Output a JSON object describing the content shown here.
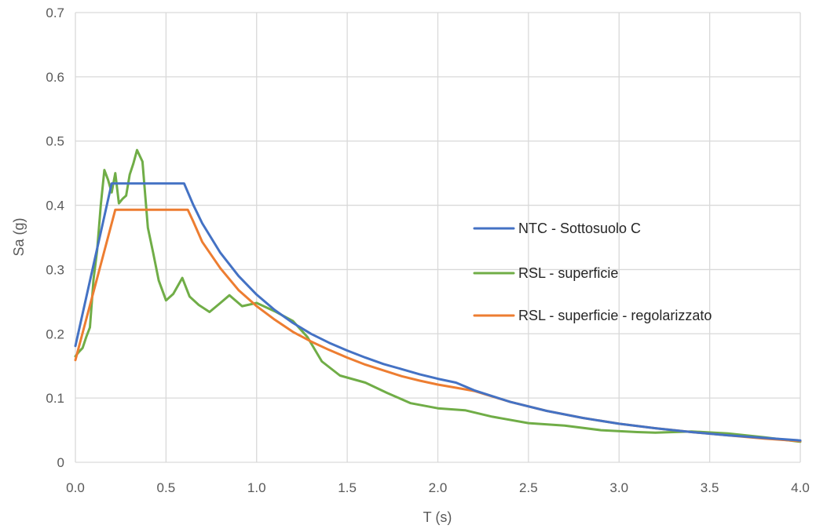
{
  "chart_data": {
    "type": "line",
    "title": "",
    "xlabel": "T (s)",
    "ylabel": "Sa (g)",
    "xlim": [
      0,
      4
    ],
    "ylim": [
      0,
      0.7
    ],
    "grid": true,
    "legend_position": "right",
    "x_ticks": [
      0.0,
      0.5,
      1.0,
      1.5,
      2.0,
      2.5,
      3.0,
      3.5,
      4.0
    ],
    "x_tick_labels": [
      "0.0",
      "0.5",
      "1.0",
      "1.5",
      "2.0",
      "2.5",
      "3.0",
      "3.5",
      "4.0"
    ],
    "y_ticks": [
      0,
      0.1,
      0.2,
      0.3,
      0.4,
      0.5,
      0.6,
      0.7
    ],
    "y_tick_labels": [
      "0",
      "0.1",
      "0.2",
      "0.3",
      "0.4",
      "0.5",
      "0.6",
      "0.7"
    ],
    "series": [
      {
        "name": "NTC - Sottosuolo C",
        "color": "#4472C4",
        "points": [
          [
            0.0,
            0.181
          ],
          [
            0.2,
            0.434
          ],
          [
            0.6,
            0.434
          ],
          [
            0.65,
            0.401
          ],
          [
            0.7,
            0.372
          ],
          [
            0.8,
            0.326
          ],
          [
            0.9,
            0.29
          ],
          [
            1.0,
            0.261
          ],
          [
            1.1,
            0.237
          ],
          [
            1.2,
            0.217
          ],
          [
            1.3,
            0.2
          ],
          [
            1.4,
            0.186
          ],
          [
            1.5,
            0.174
          ],
          [
            1.6,
            0.163
          ],
          [
            1.7,
            0.153
          ],
          [
            1.8,
            0.145
          ],
          [
            1.9,
            0.137
          ],
          [
            2.0,
            0.13
          ],
          [
            2.1,
            0.124
          ],
          [
            2.2,
            0.112
          ],
          [
            2.4,
            0.094
          ],
          [
            2.6,
            0.08
          ],
          [
            2.8,
            0.069
          ],
          [
            3.0,
            0.06
          ],
          [
            3.2,
            0.053
          ],
          [
            3.4,
            0.047
          ],
          [
            3.6,
            0.042
          ],
          [
            3.8,
            0.038
          ],
          [
            4.0,
            0.034
          ]
        ]
      },
      {
        "name": "RSL - superficie",
        "color": "#70AD47",
        "points": [
          [
            0.0,
            0.165
          ],
          [
            0.02,
            0.172
          ],
          [
            0.04,
            0.178
          ],
          [
            0.06,
            0.195
          ],
          [
            0.08,
            0.21
          ],
          [
            0.1,
            0.285
          ],
          [
            0.12,
            0.33
          ],
          [
            0.14,
            0.4
          ],
          [
            0.16,
            0.455
          ],
          [
            0.18,
            0.44
          ],
          [
            0.2,
            0.42
          ],
          [
            0.22,
            0.45
          ],
          [
            0.24,
            0.403
          ],
          [
            0.26,
            0.41
          ],
          [
            0.28,
            0.415
          ],
          [
            0.3,
            0.448
          ],
          [
            0.32,
            0.465
          ],
          [
            0.34,
            0.486
          ],
          [
            0.37,
            0.468
          ],
          [
            0.4,
            0.365
          ],
          [
            0.43,
            0.325
          ],
          [
            0.46,
            0.283
          ],
          [
            0.5,
            0.252
          ],
          [
            0.54,
            0.262
          ],
          [
            0.59,
            0.287
          ],
          [
            0.63,
            0.258
          ],
          [
            0.68,
            0.245
          ],
          [
            0.74,
            0.234
          ],
          [
            0.8,
            0.248
          ],
          [
            0.85,
            0.26
          ],
          [
            0.92,
            0.243
          ],
          [
            1.0,
            0.248
          ],
          [
            1.1,
            0.235
          ],
          [
            1.2,
            0.22
          ],
          [
            1.28,
            0.195
          ],
          [
            1.36,
            0.157
          ],
          [
            1.46,
            0.135
          ],
          [
            1.6,
            0.124
          ],
          [
            1.72,
            0.108
          ],
          [
            1.85,
            0.092
          ],
          [
            2.0,
            0.084
          ],
          [
            2.15,
            0.081
          ],
          [
            2.3,
            0.071
          ],
          [
            2.5,
            0.061
          ],
          [
            2.7,
            0.057
          ],
          [
            2.9,
            0.05
          ],
          [
            3.1,
            0.047
          ],
          [
            3.2,
            0.046
          ],
          [
            3.4,
            0.048
          ],
          [
            3.6,
            0.045
          ],
          [
            3.8,
            0.039
          ],
          [
            4.0,
            0.032
          ]
        ]
      },
      {
        "name": "RSL - superficie - regolarizzato",
        "color": "#ED7D31",
        "points": [
          [
            0.0,
            0.159
          ],
          [
            0.22,
            0.393
          ],
          [
            0.62,
            0.393
          ],
          [
            0.65,
            0.375
          ],
          [
            0.7,
            0.343
          ],
          [
            0.8,
            0.302
          ],
          [
            0.9,
            0.268
          ],
          [
            1.0,
            0.243
          ],
          [
            1.1,
            0.222
          ],
          [
            1.2,
            0.203
          ],
          [
            1.3,
            0.188
          ],
          [
            1.4,
            0.175
          ],
          [
            1.5,
            0.163
          ],
          [
            1.6,
            0.152
          ],
          [
            1.7,
            0.143
          ],
          [
            1.8,
            0.134
          ],
          [
            1.9,
            0.127
          ],
          [
            2.0,
            0.121
          ],
          [
            2.1,
            0.116
          ],
          [
            2.2,
            0.111
          ],
          [
            2.4,
            0.094
          ],
          [
            2.6,
            0.08
          ],
          [
            2.8,
            0.069
          ],
          [
            3.0,
            0.06
          ],
          [
            3.2,
            0.053
          ],
          [
            3.4,
            0.047
          ],
          [
            3.6,
            0.042
          ],
          [
            3.8,
            0.037
          ],
          [
            4.0,
            0.033
          ]
        ]
      }
    ]
  }
}
